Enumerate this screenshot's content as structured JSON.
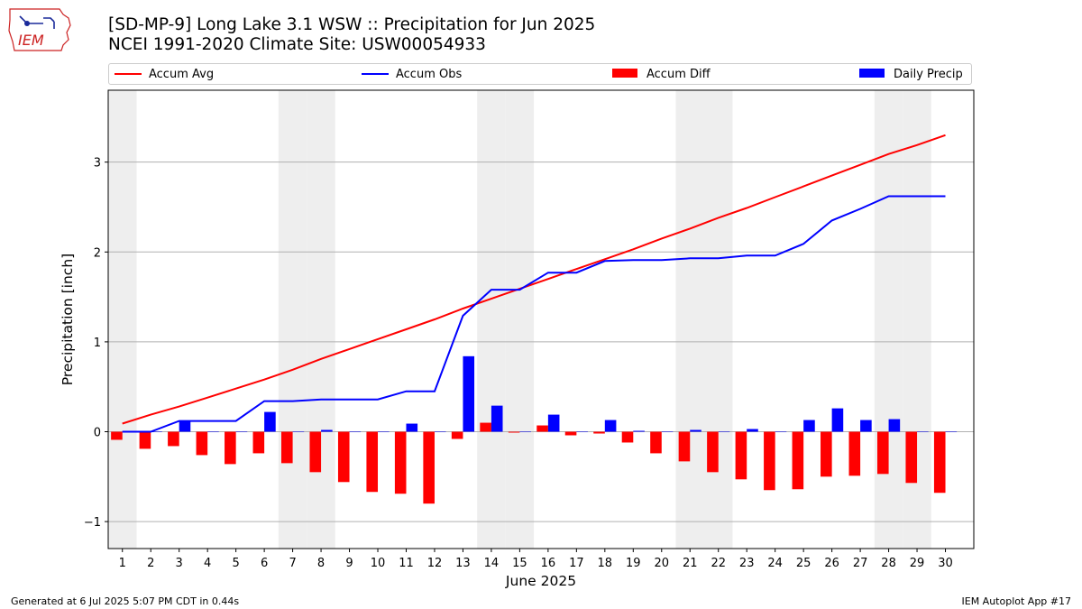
{
  "header": {
    "logo_text": "IEM",
    "title_line1": "[SD-MP-9] Long Lake 3.1 WSW :: Precipitation for Jun 2025",
    "title_line2": "NCEI 1991-2020 Climate Site: USW00054933"
  },
  "legend": {
    "accum_avg": "Accum Avg",
    "accum_obs": "Accum Obs",
    "accum_diff": "Accum Diff",
    "daily_precip": "Daily Precip",
    "placement": "top"
  },
  "footer": {
    "left": "Generated at 6 Jul 2025 5:07 PM CDT in 0.44s",
    "right": "IEM Autoplot App #17"
  },
  "colors": {
    "avg": "#ff0000",
    "obs": "#0000ff",
    "diff": "#ff0000",
    "daily": "#0000ff",
    "weekend_shade": "#eeeeee",
    "grid": "#b0b0b0"
  },
  "chart_data": {
    "type": "bar",
    "xlabel": "June 2025",
    "ylabel": "Precipitation [inch]",
    "xlim": [
      0.5,
      31
    ],
    "ylim": [
      -1.3,
      3.8
    ],
    "yticks": [
      -1,
      0,
      1,
      2,
      3
    ],
    "ytick_labels": [
      "−1",
      "0",
      "1",
      "2",
      "3"
    ],
    "grid": "horizontal",
    "categories": [
      "1",
      "2",
      "3",
      "4",
      "5",
      "6",
      "7",
      "8",
      "9",
      "10",
      "11",
      "12",
      "13",
      "14",
      "15",
      "16",
      "17",
      "18",
      "19",
      "20",
      "21",
      "22",
      "23",
      "24",
      "25",
      "26",
      "27",
      "28",
      "29",
      "30"
    ],
    "weekend_days": [
      1,
      7,
      8,
      14,
      15,
      21,
      22,
      28,
      29
    ],
    "series": [
      {
        "name": "Accum Avg",
        "kind": "line",
        "values": [
          0.09,
          0.19,
          0.28,
          0.38,
          0.48,
          0.58,
          0.69,
          0.81,
          0.92,
          1.03,
          1.14,
          1.25,
          1.37,
          1.48,
          1.59,
          1.7,
          1.81,
          1.92,
          2.03,
          2.15,
          2.26,
          2.38,
          2.49,
          2.61,
          2.73,
          2.85,
          2.97,
          3.09,
          3.19,
          3.3
        ]
      },
      {
        "name": "Accum Obs",
        "kind": "line",
        "values": [
          0.0,
          0.0,
          0.12,
          0.12,
          0.12,
          0.34,
          0.34,
          0.36,
          0.36,
          0.36,
          0.45,
          0.45,
          1.29,
          1.58,
          1.58,
          1.77,
          1.77,
          1.9,
          1.91,
          1.91,
          1.93,
          1.93,
          1.96,
          1.96,
          2.09,
          2.35,
          2.48,
          2.62,
          2.62,
          2.62
        ]
      },
      {
        "name": "Accum Diff",
        "kind": "bar",
        "values": [
          -0.09,
          -0.19,
          -0.16,
          -0.26,
          -0.36,
          -0.24,
          -0.35,
          -0.45,
          -0.56,
          -0.67,
          -0.69,
          -0.8,
          -0.08,
          0.1,
          -0.01,
          0.07,
          -0.04,
          -0.02,
          -0.12,
          -0.24,
          -0.33,
          -0.45,
          -0.53,
          -0.65,
          -0.64,
          -0.5,
          -0.49,
          -0.47,
          -0.57,
          -0.68
        ]
      },
      {
        "name": "Daily Precip",
        "kind": "bar",
        "values": [
          0.0,
          0.0,
          0.12,
          0.0,
          0.0,
          0.22,
          0.0,
          0.02,
          0.0,
          0.0,
          0.09,
          0.0,
          0.84,
          0.29,
          0.0,
          0.19,
          0.0,
          0.13,
          0.01,
          0.0,
          0.02,
          0.0,
          0.03,
          0.0,
          0.13,
          0.26,
          0.13,
          0.14,
          0.0,
          0.0
        ]
      }
    ]
  }
}
